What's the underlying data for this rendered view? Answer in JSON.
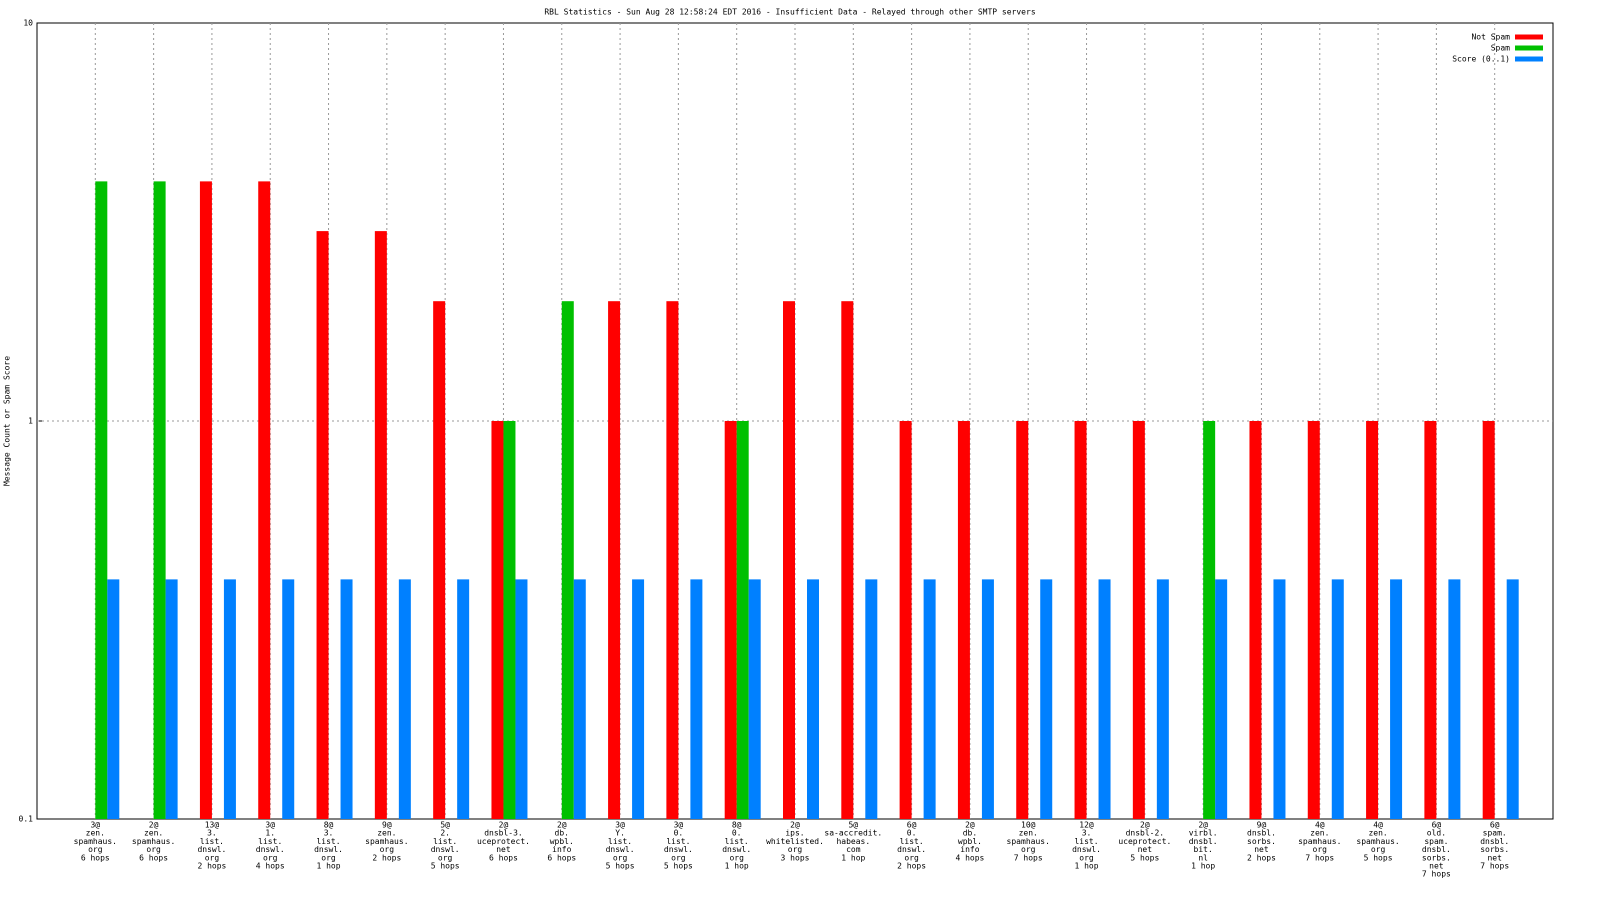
{
  "chart_data": {
    "type": "bar",
    "title": "RBL Statistics - Sun Aug 28 12:58:24 EDT 2016 - Insufficient Data - Relayed through other SMTP servers",
    "y_label": "Message Count or Spam Score",
    "log_y": true,
    "grid": true,
    "legend": "top-right",
    "ylim": [
      0.1,
      10
    ],
    "yticks": [
      0.1,
      1,
      10
    ],
    "categories": [
      [
        "3@",
        "zen.",
        "spamhaus.",
        "org",
        "6 hops"
      ],
      [
        "2@",
        "zen.",
        "spamhaus.",
        "org",
        "6 hops"
      ],
      [
        "13@",
        "3.",
        "list.",
        "dnswl.",
        "org",
        "2 hops"
      ],
      [
        "3@",
        "1.",
        "list.",
        "dnswl.",
        "org",
        "4 hops"
      ],
      [
        "8@",
        "3.",
        "list.",
        "dnswl.",
        "org",
        "1 hop"
      ],
      [
        "9@",
        "zen.",
        "spamhaus.",
        "org",
        "2 hops"
      ],
      [
        "5@",
        "2.",
        "list.",
        "dnswl.",
        "org",
        "5 hops"
      ],
      [
        "2@",
        "dnsbl-3.",
        "uceprotect.",
        "net",
        "6 hops"
      ],
      [
        "2@",
        "db.",
        "wpbl.",
        "info",
        "6 hops"
      ],
      [
        "3@",
        "Y.",
        "list.",
        "dnswl.",
        "org",
        "5 hops"
      ],
      [
        "3@",
        "0.",
        "list.",
        "dnswl.",
        "org",
        "5 hops"
      ],
      [
        "8@",
        "0.",
        "list.",
        "dnswl.",
        "org",
        "1 hop"
      ],
      [
        "2@",
        "ips.",
        "whitelisted.",
        "org",
        "3 hops"
      ],
      [
        "5@",
        "sa-accredit.",
        "habeas.",
        "com",
        "1 hop"
      ],
      [
        "6@",
        "0.",
        "list.",
        "dnswl.",
        "org",
        "2 hops"
      ],
      [
        "2@",
        "db.",
        "wpbl.",
        "info",
        "4 hops"
      ],
      [
        "10@",
        "zen.",
        "spamhaus.",
        "org",
        "7 hops"
      ],
      [
        "12@",
        "3.",
        "list.",
        "dnswl.",
        "org",
        "1 hop"
      ],
      [
        "2@",
        "dnsbl-2.",
        "uceprotect.",
        "net",
        "5 hops"
      ],
      [
        "2@",
        "virbl.",
        "dnsbl.",
        "bit.",
        "nl",
        "1 hop"
      ],
      [
        "9@",
        "dnsbl.",
        "sorbs.",
        "net",
        "2 hops"
      ],
      [
        "4@",
        "zen.",
        "spamhaus.",
        "org",
        "7 hops"
      ],
      [
        "4@",
        "zen.",
        "spamhaus.",
        "org",
        "5 hops"
      ],
      [
        "6@",
        "old.",
        "spam.",
        "dnsbl.",
        "sorbs.",
        "net",
        "7 hops"
      ],
      [
        "6@",
        "spam.",
        "dnsbl.",
        "sorbs.",
        "net",
        "7 hops"
      ]
    ],
    "series": [
      {
        "name": "Not Spam",
        "color": "#ff0000",
        "values": [
          null,
          null,
          4,
          4,
          3,
          3,
          2,
          1,
          null,
          2,
          2,
          1,
          2,
          2,
          1,
          1,
          1,
          1,
          1,
          null,
          1,
          1,
          1,
          1,
          1
        ]
      },
      {
        "name": "Spam",
        "color": "#00c000",
        "values": [
          4,
          4,
          null,
          null,
          null,
          null,
          null,
          1,
          2,
          null,
          null,
          1,
          null,
          null,
          null,
          null,
          null,
          null,
          null,
          1,
          null,
          null,
          null,
          null,
          null
        ]
      },
      {
        "name": "Score (0..1)",
        "color": "#0080ff",
        "values": [
          0.4,
          0.4,
          0.4,
          0.4,
          0.4,
          0.4,
          0.4,
          0.4,
          0.4,
          0.4,
          0.4,
          0.4,
          0.4,
          0.4,
          0.4,
          0.4,
          0.4,
          0.4,
          0.4,
          0.4,
          0.4,
          0.4,
          0.4,
          0.4,
          0.4
        ]
      }
    ]
  }
}
